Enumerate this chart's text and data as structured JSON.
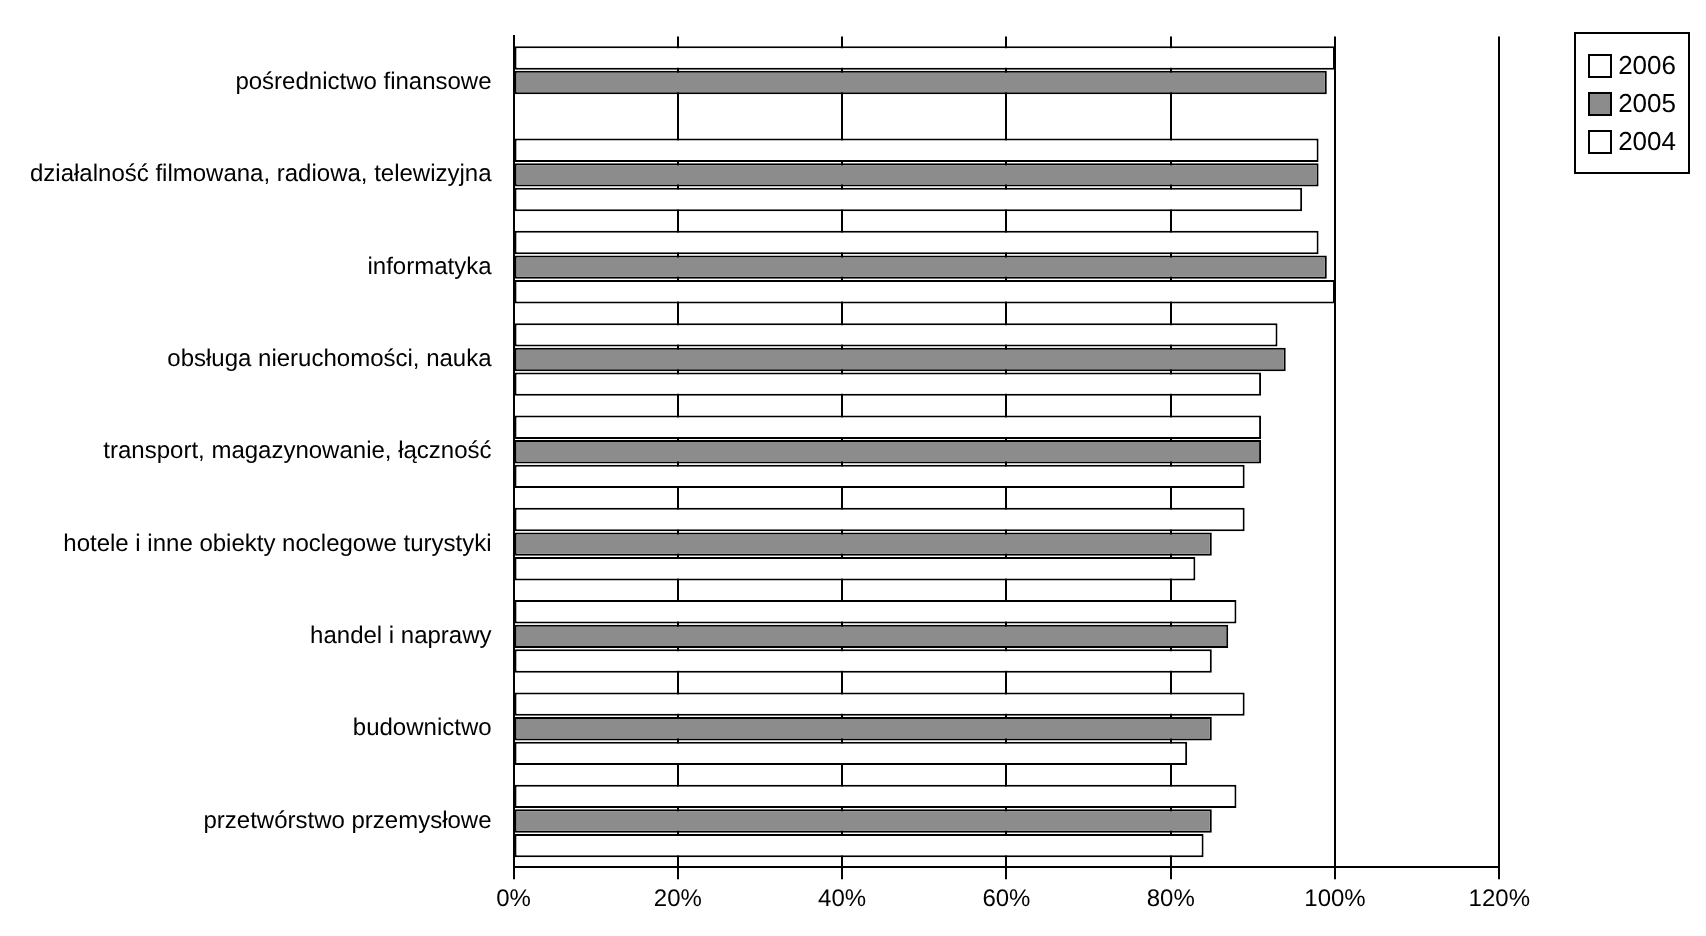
{
  "chart_data": {
    "type": "bar",
    "orientation": "horizontal",
    "categories": [
      "pośrednictwo finansowe",
      "działalność filmowana, radiowa, telewizyjna",
      "informatyka",
      "obsługa nieruchomości, nauka",
      "transport, magazynowanie, łączność",
      "hotele i inne obiekty noclegowe turystyki",
      "handel i naprawy",
      "budownictwo",
      "przetwórstwo przemysłowe"
    ],
    "series": [
      {
        "name": "2006",
        "color": "#ffffff",
        "values": [
          100,
          98,
          98,
          93,
          91,
          89,
          88,
          89,
          88
        ]
      },
      {
        "name": "2005",
        "color": "#8c8c8c",
        "values": [
          99,
          98,
          99,
          94,
          91,
          85,
          87,
          85,
          85
        ]
      },
      {
        "name": "2004",
        "color": "#ffffff",
        "values": [
          null,
          96,
          100,
          91,
          89,
          83,
          85,
          82,
          84
        ]
      }
    ],
    "xlim": [
      0,
      120
    ],
    "xticks": [
      {
        "value": 0,
        "label": "0%"
      },
      {
        "value": 20,
        "label": "20%"
      },
      {
        "value": 40,
        "label": "40%"
      },
      {
        "value": 60,
        "label": "60%"
      },
      {
        "value": 80,
        "label": "80%"
      },
      {
        "value": 100,
        "label": "100%"
      },
      {
        "value": 120,
        "label": "120%"
      }
    ],
    "grid": "x",
    "legend": "top right"
  }
}
